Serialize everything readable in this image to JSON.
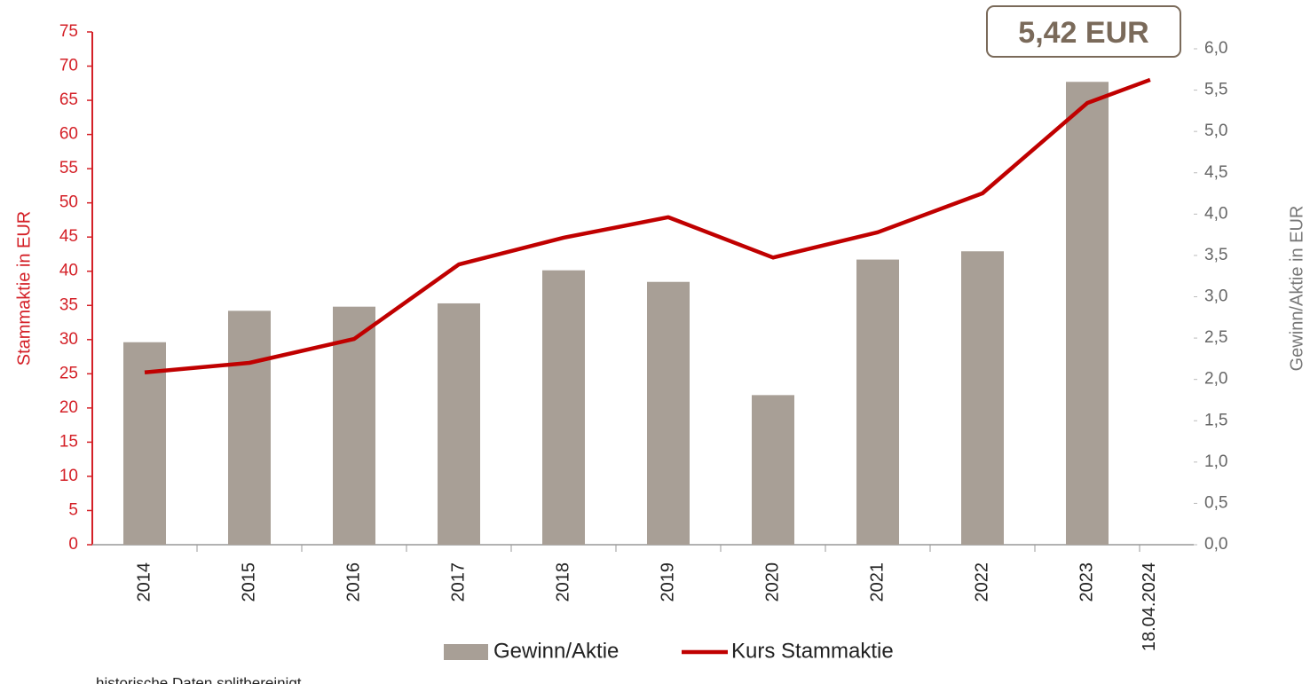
{
  "chart_data": {
    "type": "bar-line",
    "annotation": "5,42 EUR",
    "footnote": "historische Daten splitbereinigt",
    "y_label": "Stammaktie in EUR",
    "y2_label": "Gewinn/Aktie in EUR",
    "categories": [
      "2014",
      "2015",
      "2016",
      "2017",
      "2018",
      "2019",
      "2020",
      "2021",
      "2022",
      "2023",
      "18.04.2024"
    ],
    "series": [
      {
        "name": "Gewinn/Aktie",
        "type": "bar",
        "axis": "y2",
        "color": "#a89f96",
        "values": [
          2.45,
          2.83,
          2.88,
          2.92,
          3.32,
          3.18,
          1.81,
          3.45,
          3.55,
          5.6,
          null
        ]
      },
      {
        "name": "Kurs Stammaktie",
        "type": "line",
        "axis": "y",
        "color": "#c00000",
        "values": [
          25.2,
          26.6,
          30.1,
          41.0,
          44.9,
          47.9,
          42.0,
          45.7,
          51.4,
          64.6,
          68.0
        ]
      }
    ],
    "ylim": [
      0,
      75
    ],
    "yticks": [
      0,
      5,
      10,
      15,
      20,
      25,
      30,
      35,
      40,
      45,
      50,
      55,
      60,
      65,
      70,
      75
    ],
    "y2lim": [
      0,
      6
    ],
    "y2ticks": [
      {
        "value": 0,
        "label": "0,0"
      },
      {
        "value": 0.5,
        "label": "0,5"
      },
      {
        "value": 1,
        "label": "1,0"
      },
      {
        "value": 1.5,
        "label": "1,5"
      },
      {
        "value": 2,
        "label": "2,0"
      },
      {
        "value": 2.5,
        "label": "2,5"
      },
      {
        "value": 3,
        "label": "3,0"
      },
      {
        "value": 3.5,
        "label": "3,5"
      },
      {
        "value": 4,
        "label": "4,0"
      },
      {
        "value": 4.5,
        "label": "4,5"
      },
      {
        "value": 5,
        "label": "5,0"
      },
      {
        "value": 5.5,
        "label": "5,5"
      },
      {
        "value": 6,
        "label": "6,0"
      }
    ],
    "grid": false
  }
}
